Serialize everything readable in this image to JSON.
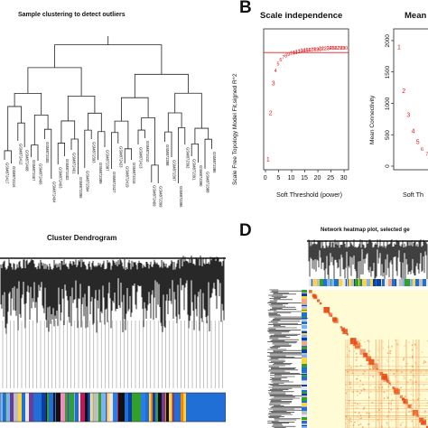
{
  "figure": {
    "panel_a": {
      "title": "Sample clustering to detect outliers",
      "sample_labels": [
        "GSM872417",
        "GSM872416",
        "GSM872412",
        "GSM872408",
        "GSM872407",
        "GSM872406",
        "GSM872405",
        "GSM872404",
        "GSM872403",
        "GSM872402",
        "GSM872401",
        "GSM872395",
        "GSM872394",
        "GSM872393",
        "GSM872389",
        "GSM872387",
        "GSM872427",
        "GSM872423",
        "GSM872419",
        "GSM872415",
        "GSM872413",
        "GSM872410",
        "GSM872409",
        "GSM872399",
        "GSM872398",
        "GSM872397",
        "GSM872396",
        "GSM872392",
        "GSM872391",
        "GSM872390",
        "GSM872388",
        "GSM872386"
      ]
    },
    "panel_b": {
      "letter": "B",
      "left_title": "Scale independence",
      "left_xlabel": "Soft Threshold (power)",
      "left_ylabel": "Scale Free Topology Model Fit,signed R^2",
      "right_title": "Mean",
      "right_xlabel": "Soft Th",
      "right_ylabel": "Mean Connectivity",
      "left_xticks": [
        "0",
        "5",
        "10",
        "15",
        "20",
        "25",
        "30"
      ],
      "right_yticks": [
        "0",
        "500",
        "1000",
        "1500",
        "2000"
      ],
      "point_labels": [
        "1",
        "2",
        "3",
        "4",
        "5",
        "6",
        "7",
        "8",
        "9",
        "10",
        "11",
        "12",
        "13",
        "14",
        "15",
        "16",
        "17",
        "18",
        "19",
        "20",
        "21",
        "22",
        "23",
        "24",
        "25",
        "26",
        "27",
        "28",
        "29",
        "30"
      ]
    },
    "panel_c": {
      "title": "Cluster Dendrogram"
    },
    "panel_d": {
      "letter": "D",
      "title": "Network heatmap plot, selected ge"
    },
    "colors": {
      "red": "#e41a1c",
      "heat_light": "#fffbd5",
      "heat_dark": "#e8501a",
      "module_blue": "#1f6fd6",
      "grey": "#bebebe"
    }
  },
  "chart_data": [
    {
      "type": "scatter",
      "title": "Scale independence",
      "xlabel": "Soft Threshold (power)",
      "ylabel": "Scale Free Topology Model Fit,signed R^2",
      "x": [
        1,
        2,
        3,
        4,
        5,
        6,
        7,
        8,
        9,
        10,
        11,
        12,
        13,
        14,
        15,
        16,
        17,
        18,
        19,
        20,
        21,
        22,
        23,
        24,
        25,
        26,
        27,
        28,
        29,
        30
      ],
      "y": [
        0.05,
        0.4,
        0.62,
        0.72,
        0.77,
        0.8,
        0.82,
        0.83,
        0.84,
        0.85,
        0.855,
        0.86,
        0.865,
        0.87,
        0.87,
        0.875,
        0.875,
        0.88,
        0.88,
        0.88,
        0.885,
        0.885,
        0.885,
        0.89,
        0.89,
        0.89,
        0.89,
        0.89,
        0.89,
        0.89
      ],
      "xlim": [
        0,
        31
      ],
      "ylim": [
        0,
        1
      ],
      "hline": 0.85
    },
    {
      "type": "scatter",
      "title": "Mean",
      "xlabel": "Soft Th",
      "ylabel": "Mean Connectivity",
      "x": [
        1,
        2,
        3,
        4,
        5,
        6,
        7,
        8,
        9,
        10
      ],
      "y": [
        1900,
        1200,
        820,
        560,
        390,
        280,
        200,
        150,
        110,
        80
      ],
      "xlim": [
        0,
        10
      ],
      "ylim": [
        0,
        2100
      ]
    }
  ]
}
